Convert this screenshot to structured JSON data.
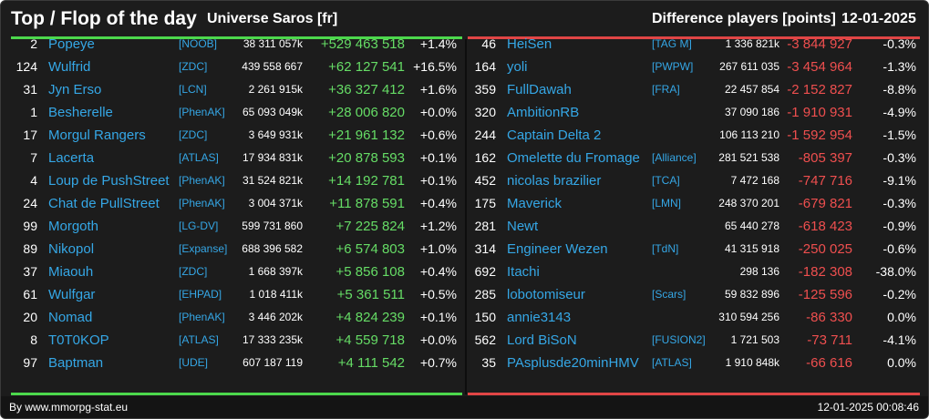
{
  "header": {
    "title": "Top / Flop of the day",
    "universe": "Universe Saros [fr]",
    "difference_label": "Difference players [points]",
    "date": "12-01-2025"
  },
  "colors": {
    "positive": "#66dd66",
    "negative": "#ef4f4f",
    "link": "#35a7e6",
    "top_accent": "#4cd84c",
    "flop_accent": "#e04545"
  },
  "top": [
    {
      "rank": "2",
      "name": "Popeye",
      "tag": "[NOOB]",
      "points": "38 311 057k",
      "diff": "+529 463 518",
      "pct": "+1.4%"
    },
    {
      "rank": "124",
      "name": "Wulfrid",
      "tag": "[ZDC]",
      "points": "439 558 667",
      "diff": "+62 127 541",
      "pct": "+16.5%"
    },
    {
      "rank": "31",
      "name": "Jyn Erso",
      "tag": "[LCN]",
      "points": "2 261 915k",
      "diff": "+36 327 412",
      "pct": "+1.6%"
    },
    {
      "rank": "1",
      "name": "Besherelle",
      "tag": "[PhenAK]",
      "points": "65 093 049k",
      "diff": "+28 006 820",
      "pct": "+0.0%"
    },
    {
      "rank": "17",
      "name": "Morgul Rangers",
      "tag": "[ZDC]",
      "points": "3 649 931k",
      "diff": "+21 961 132",
      "pct": "+0.6%"
    },
    {
      "rank": "7",
      "name": "Lacerta",
      "tag": "[ATLAS]",
      "points": "17 934 831k",
      "diff": "+20 878 593",
      "pct": "+0.1%"
    },
    {
      "rank": "4",
      "name": "Loup de PushStreet",
      "tag": "[PhenAK]",
      "points": "31 524 821k",
      "diff": "+14 192 781",
      "pct": "+0.1%"
    },
    {
      "rank": "24",
      "name": "Chat de PullStreet",
      "tag": "[PhenAK]",
      "points": "3 004 371k",
      "diff": "+11 878 591",
      "pct": "+0.4%"
    },
    {
      "rank": "99",
      "name": "Morgoth",
      "tag": "[LG-DV]",
      "points": "599 731 860",
      "diff": "+7 225 824",
      "pct": "+1.2%"
    },
    {
      "rank": "89",
      "name": "Nikopol",
      "tag": "[Expanse]",
      "points": "688 396 582",
      "diff": "+6 574 803",
      "pct": "+1.0%"
    },
    {
      "rank": "37",
      "name": "Miaouh",
      "tag": "[ZDC]",
      "points": "1 668 397k",
      "diff": "+5 856 108",
      "pct": "+0.4%"
    },
    {
      "rank": "61",
      "name": "Wulfgar",
      "tag": "[EHPAD]",
      "points": "1 018 411k",
      "diff": "+5 361 511",
      "pct": "+0.5%"
    },
    {
      "rank": "20",
      "name": "Nomad",
      "tag": "[PhenAK]",
      "points": "3 446 202k",
      "diff": "+4 824 239",
      "pct": "+0.1%"
    },
    {
      "rank": "8",
      "name": "T0T0KOP",
      "tag": "[ATLAS]",
      "points": "17 333 235k",
      "diff": "+4 559 718",
      "pct": "+0.0%"
    },
    {
      "rank": "97",
      "name": "Baptman",
      "tag": "[UDE]",
      "points": "607 187 119",
      "diff": "+4 111 542",
      "pct": "+0.7%"
    }
  ],
  "flop": [
    {
      "rank": "46",
      "name": "HeiSen",
      "tag": "[TAG M]",
      "points": "1 336 821k",
      "diff": "-3 844 927",
      "pct": "-0.3%"
    },
    {
      "rank": "164",
      "name": "yoli",
      "tag": "[PWPW]",
      "points": "267 611 035",
      "diff": "-3 454 964",
      "pct": "-1.3%"
    },
    {
      "rank": "359",
      "name": "FullDawah",
      "tag": "[FRA]",
      "points": "22 457 854",
      "diff": "-2 152 827",
      "pct": "-8.8%"
    },
    {
      "rank": "320",
      "name": "AmbitionRB",
      "tag": "",
      "points": "37 090 186",
      "diff": "-1 910 931",
      "pct": "-4.9%"
    },
    {
      "rank": "244",
      "name": "Captain Delta 2",
      "tag": "",
      "points": "106 113 210",
      "diff": "-1 592 954",
      "pct": "-1.5%"
    },
    {
      "rank": "162",
      "name": "Omelette du Fromage",
      "tag": "[Alliance]",
      "points": "281 521 538",
      "diff": "-805 397",
      "pct": "-0.3%"
    },
    {
      "rank": "452",
      "name": "nicolas brazilier",
      "tag": "[TCA]",
      "points": "7 472 168",
      "diff": "-747 716",
      "pct": "-9.1%"
    },
    {
      "rank": "175",
      "name": "Maverick",
      "tag": "[LMN]",
      "points": "248 370 201",
      "diff": "-679 821",
      "pct": "-0.3%"
    },
    {
      "rank": "281",
      "name": "Newt",
      "tag": "",
      "points": "65 440 278",
      "diff": "-618 423",
      "pct": "-0.9%"
    },
    {
      "rank": "314",
      "name": "Engineer Wezen",
      "tag": "[TdN]",
      "points": "41 315 918",
      "diff": "-250 025",
      "pct": "-0.6%"
    },
    {
      "rank": "692",
      "name": "Itachi",
      "tag": "",
      "points": "298 136",
      "diff": "-182 308",
      "pct": "-38.0%"
    },
    {
      "rank": "285",
      "name": "lobotomiseur",
      "tag": "[Scars]",
      "points": "59 832 896",
      "diff": "-125 596",
      "pct": "-0.2%"
    },
    {
      "rank": "150",
      "name": "annie3143",
      "tag": "",
      "points": "310 594 256",
      "diff": "-86 330",
      "pct": "0.0%"
    },
    {
      "rank": "562",
      "name": "Lord BiSoN",
      "tag": "[FUSION2]",
      "points": "1 721 503",
      "diff": "-73 711",
      "pct": "-4.1%"
    },
    {
      "rank": "35",
      "name": "PAsplusde20minHMV",
      "tag": "[ATLAS]",
      "points": "1 910 848k",
      "diff": "-66 616",
      "pct": "0.0%"
    }
  ],
  "footer": {
    "byline": "By www.mmorpg-stat.eu",
    "timestamp": "12-01-2025 00:08:46"
  }
}
